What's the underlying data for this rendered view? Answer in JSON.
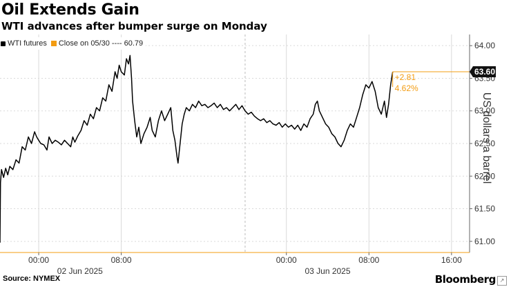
{
  "title": "Oil Extends Gain",
  "subtitle": "WTI advances after bumper surge on Monday",
  "legend": {
    "series_label": "WTI futures",
    "ref_label": "Close on 05/30 ---- 60.79"
  },
  "source": "Source: NYMEX",
  "brand": "Bloomberg",
  "colors": {
    "series": "#000000",
    "reference": "#f39c12",
    "grid": "#d9d9d9",
    "last_badge": "#111111"
  },
  "chart_data": {
    "type": "line",
    "ylabel": "US dollars a barrel",
    "ylim": [
      60.85,
      64.15
    ],
    "yticks": [
      "61.00",
      "61.50",
      "62.00",
      "62.50",
      "63.00",
      "63.50",
      "64.00"
    ],
    "xlim": [
      -3.75,
      41.75
    ],
    "xticks": [
      {
        "x": 0,
        "label": "00:00"
      },
      {
        "x": 8,
        "label": "08:00"
      },
      {
        "x": 24,
        "label": "00:00"
      },
      {
        "x": 32,
        "label": "08:00"
      },
      {
        "x": 40,
        "label": "16:00"
      }
    ],
    "date_labels": [
      {
        "x": 4,
        "label": "02 Jun 2025"
      },
      {
        "x": 28,
        "label": "03 Jun 2025"
      }
    ],
    "reference_line": 60.79,
    "last_value": "63.60",
    "change_abs": "+2.81",
    "change_pct": "4.62%",
    "grid": true,
    "series": [
      {
        "name": "WTI futures",
        "points": [
          [
            -3.75,
            60.98
          ],
          [
            -3.7,
            61.9
          ],
          [
            -3.6,
            62.1
          ],
          [
            -3.4,
            61.98
          ],
          [
            -3.2,
            62.12
          ],
          [
            -3.0,
            62.02
          ],
          [
            -2.8,
            62.15
          ],
          [
            -2.5,
            62.1
          ],
          [
            -2.2,
            62.25
          ],
          [
            -1.9,
            62.2
          ],
          [
            -1.6,
            62.45
          ],
          [
            -1.3,
            62.4
          ],
          [
            -1.0,
            62.6
          ],
          [
            -0.7,
            62.5
          ],
          [
            -0.4,
            62.68
          ],
          [
            -0.2,
            62.6
          ],
          [
            0.0,
            62.55
          ],
          [
            0.2,
            62.5
          ],
          [
            0.5,
            62.48
          ],
          [
            0.8,
            62.4
          ],
          [
            1.0,
            62.6
          ],
          [
            1.3,
            62.5
          ],
          [
            1.6,
            62.55
          ],
          [
            1.9,
            62.52
          ],
          [
            2.2,
            62.48
          ],
          [
            2.5,
            62.55
          ],
          [
            2.8,
            62.5
          ],
          [
            3.1,
            62.45
          ],
          [
            3.3,
            62.6
          ],
          [
            3.5,
            62.52
          ],
          [
            3.8,
            62.62
          ],
          [
            4.1,
            62.7
          ],
          [
            4.4,
            62.85
          ],
          [
            4.7,
            62.78
          ],
          [
            5.0,
            62.95
          ],
          [
            5.3,
            62.88
          ],
          [
            5.6,
            63.05
          ],
          [
            5.9,
            63.0
          ],
          [
            6.2,
            63.2
          ],
          [
            6.5,
            63.15
          ],
          [
            6.8,
            63.4
          ],
          [
            7.1,
            63.3
          ],
          [
            7.4,
            63.6
          ],
          [
            7.6,
            63.5
          ],
          [
            7.8,
            63.7
          ],
          [
            8.0,
            63.6
          ],
          [
            8.3,
            63.55
          ],
          [
            8.5,
            63.8
          ],
          [
            8.7,
            63.72
          ],
          [
            8.85,
            63.85
          ],
          [
            9.0,
            63.5
          ],
          [
            9.1,
            63.15
          ],
          [
            9.3,
            62.85
          ],
          [
            9.5,
            62.6
          ],
          [
            9.7,
            62.75
          ],
          [
            9.9,
            62.5
          ],
          [
            10.2,
            62.65
          ],
          [
            10.5,
            62.75
          ],
          [
            10.8,
            62.9
          ],
          [
            11.0,
            62.7
          ],
          [
            11.3,
            62.6
          ],
          [
            11.6,
            62.85
          ],
          [
            11.9,
            63.0
          ],
          [
            12.2,
            62.85
          ],
          [
            12.5,
            62.95
          ],
          [
            12.8,
            63.05
          ],
          [
            13.0,
            62.7
          ],
          [
            13.2,
            62.55
          ],
          [
            13.4,
            62.3
          ],
          [
            13.5,
            62.2
          ],
          [
            13.7,
            62.5
          ],
          [
            13.9,
            62.8
          ],
          [
            14.1,
            62.95
          ],
          [
            14.3,
            63.05
          ],
          [
            14.6,
            63.0
          ],
          [
            14.9,
            63.1
          ],
          [
            15.2,
            63.05
          ],
          [
            15.5,
            63.15
          ],
          [
            15.8,
            63.08
          ],
          [
            16.1,
            63.1
          ],
          [
            16.4,
            63.05
          ],
          [
            16.7,
            63.08
          ],
          [
            17.0,
            63.12
          ],
          [
            17.3,
            63.05
          ],
          [
            17.6,
            63.1
          ],
          [
            17.9,
            63.02
          ],
          [
            18.2,
            63.05
          ],
          [
            18.5,
            63.0
          ],
          [
            18.8,
            63.05
          ],
          [
            19.1,
            63.1
          ],
          [
            19.4,
            63.02
          ],
          [
            19.7,
            63.08
          ],
          [
            20.0,
            63.0
          ],
          [
            20.3,
            62.95
          ],
          [
            20.6,
            62.98
          ],
          [
            20.9,
            62.92
          ],
          [
            21.2,
            62.88
          ],
          [
            21.5,
            62.85
          ],
          [
            21.8,
            62.88
          ],
          [
            22.1,
            62.82
          ],
          [
            22.4,
            62.85
          ],
          [
            22.7,
            62.8
          ],
          [
            23.0,
            62.78
          ],
          [
            23.3,
            62.82
          ],
          [
            23.6,
            62.75
          ],
          [
            23.9,
            62.8
          ],
          [
            24.2,
            62.75
          ],
          [
            24.5,
            62.78
          ],
          [
            24.8,
            62.72
          ],
          [
            25.1,
            62.78
          ],
          [
            25.4,
            62.7
          ],
          [
            25.7,
            62.8
          ],
          [
            26.0,
            62.75
          ],
          [
            26.3,
            62.88
          ],
          [
            26.6,
            62.95
          ],
          [
            26.8,
            63.1
          ],
          [
            27.0,
            63.15
          ],
          [
            27.2,
            63.0
          ],
          [
            27.5,
            62.9
          ],
          [
            27.8,
            62.8
          ],
          [
            28.1,
            62.75
          ],
          [
            28.4,
            62.65
          ],
          [
            28.7,
            62.6
          ],
          [
            29.0,
            62.5
          ],
          [
            29.3,
            62.45
          ],
          [
            29.6,
            62.55
          ],
          [
            29.9,
            62.7
          ],
          [
            30.2,
            62.8
          ],
          [
            30.5,
            62.75
          ],
          [
            30.8,
            62.9
          ],
          [
            31.1,
            63.05
          ],
          [
            31.4,
            63.25
          ],
          [
            31.7,
            63.4
          ],
          [
            32.0,
            63.35
          ],
          [
            32.3,
            63.45
          ],
          [
            32.6,
            63.3
          ],
          [
            32.9,
            63.05
          ],
          [
            33.2,
            62.95
          ],
          [
            33.5,
            63.15
          ],
          [
            33.7,
            62.9
          ],
          [
            33.9,
            63.1
          ],
          [
            34.1,
            63.4
          ],
          [
            34.3,
            63.6
          ]
        ]
      }
    ]
  }
}
